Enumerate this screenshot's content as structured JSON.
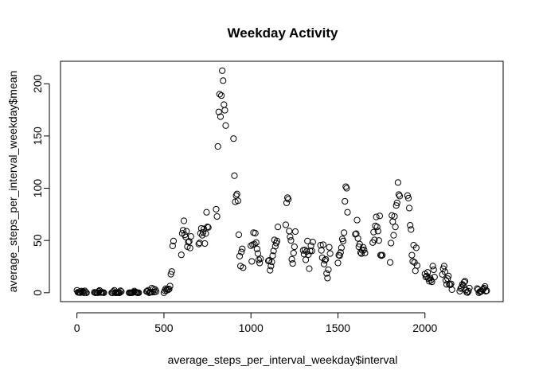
{
  "chart_data": {
    "type": "scatter",
    "title": "Weekday Activity",
    "xlabel": "average_steps_per_interval_weekday$interval",
    "ylabel": "average_steps_per_interval_weekday$mean",
    "xlim": [
      -94.4,
      2449.4
    ],
    "ylim": [
      -8.5,
      221.5
    ],
    "x_ticks": [
      0,
      500,
      1000,
      1500,
      2000
    ],
    "y_ticks": [
      0,
      50,
      100,
      150,
      200
    ],
    "grid": false,
    "legend": "none",
    "marker": "open-circle",
    "points": [
      [
        0,
        2.3
      ],
      [
        5,
        0.5
      ],
      [
        10,
        0.2
      ],
      [
        15,
        0.2
      ],
      [
        20,
        0.1
      ],
      [
        25,
        1.6
      ],
      [
        30,
        0.7
      ],
      [
        35,
        1.2
      ],
      [
        40,
        0
      ],
      [
        45,
        1.8
      ],
      [
        50,
        0.4
      ],
      [
        55,
        0
      ],
      [
        100,
        0.4
      ],
      [
        105,
        0
      ],
      [
        110,
        0.2
      ],
      [
        115,
        0.4
      ],
      [
        120,
        0
      ],
      [
        125,
        1.4
      ],
      [
        130,
        2.2
      ],
      [
        135,
        0.2
      ],
      [
        140,
        0.2
      ],
      [
        145,
        0.3
      ],
      [
        150,
        0.3
      ],
      [
        155,
        0
      ],
      [
        200,
        0
      ],
      [
        205,
        0
      ],
      [
        210,
        1.1
      ],
      [
        215,
        2.3
      ],
      [
        220,
        0
      ],
      [
        225,
        0.2
      ],
      [
        230,
        0
      ],
      [
        235,
        0.3
      ],
      [
        240,
        0
      ],
      [
        245,
        0
      ],
      [
        250,
        1.9
      ],
      [
        255,
        1.1
      ],
      [
        300,
        0
      ],
      [
        305,
        0
      ],
      [
        310,
        0
      ],
      [
        315,
        0
      ],
      [
        320,
        0.1
      ],
      [
        325,
        0.6
      ],
      [
        330,
        1.6
      ],
      [
        335,
        0.6
      ],
      [
        340,
        0.5
      ],
      [
        345,
        0.1
      ],
      [
        350,
        0
      ],
      [
        355,
        0
      ],
      [
        400,
        1.2
      ],
      [
        405,
        1.3
      ],
      [
        410,
        2.4
      ],
      [
        415,
        0
      ],
      [
        420,
        0.4
      ],
      [
        425,
        0.5
      ],
      [
        430,
        4.4
      ],
      [
        435,
        0.6
      ],
      [
        440,
        3.5
      ],
      [
        445,
        0.8
      ],
      [
        450,
        3.0
      ],
      [
        455,
        1.1
      ],
      [
        500,
        0
      ],
      [
        505,
        2.0
      ],
      [
        510,
        3.8
      ],
      [
        515,
        2.2
      ],
      [
        520,
        3.6
      ],
      [
        525,
        2.8
      ],
      [
        530,
        3.5
      ],
      [
        535,
        6.4
      ],
      [
        540,
        17.7
      ],
      [
        545,
        20.3
      ],
      [
        550,
        44.8
      ],
      [
        555,
        49.5
      ],
      [
        600,
        36.3
      ],
      [
        605,
        56.8
      ],
      [
        610,
        59.8
      ],
      [
        615,
        68.8
      ],
      [
        620,
        55.4
      ],
      [
        625,
        53.4
      ],
      [
        630,
        58.8
      ],
      [
        635,
        44.1
      ],
      [
        640,
        48.4
      ],
      [
        645,
        49.1
      ],
      [
        650,
        42.8
      ],
      [
        655,
        53.9
      ],
      [
        700,
        46.6
      ],
      [
        705,
        47.7
      ],
      [
        710,
        56.9
      ],
      [
        715,
        61.6
      ],
      [
        720,
        55.0
      ],
      [
        725,
        57.9
      ],
      [
        730,
        61.1
      ],
      [
        735,
        47.1
      ],
      [
        740,
        56.6
      ],
      [
        745,
        77.0
      ],
      [
        750,
        63.0
      ],
      [
        755,
        62.5
      ],
      [
        800,
        79.9
      ],
      [
        805,
        73.0
      ],
      [
        810,
        140.0
      ],
      [
        815,
        173.0
      ],
      [
        820,
        190.0
      ],
      [
        825,
        168.5
      ],
      [
        830,
        188.7
      ],
      [
        835,
        212.5
      ],
      [
        840,
        203.0
      ],
      [
        845,
        180.0
      ],
      [
        850,
        174.6
      ],
      [
        855,
        160.0
      ],
      [
        900,
        147.5
      ],
      [
        905,
        112.0
      ],
      [
        910,
        87.0
      ],
      [
        915,
        93.0
      ],
      [
        920,
        94.5
      ],
      [
        925,
        88.0
      ],
      [
        930,
        55.5
      ],
      [
        935,
        35.0
      ],
      [
        940,
        25.5
      ],
      [
        945,
        39.0
      ],
      [
        950,
        42.0
      ],
      [
        955,
        24.0
      ],
      [
        1000,
        45.0
      ],
      [
        1005,
        30.0
      ],
      [
        1010,
        46.0
      ],
      [
        1015,
        57.5
      ],
      [
        1020,
        46.5
      ],
      [
        1025,
        57.0
      ],
      [
        1030,
        48.0
      ],
      [
        1035,
        42.0
      ],
      [
        1040,
        37.5
      ],
      [
        1045,
        31.5
      ],
      [
        1050,
        28.5
      ],
      [
        1055,
        32.5
      ],
      [
        1100,
        30.5
      ],
      [
        1105,
        31.0
      ],
      [
        1110,
        21.5
      ],
      [
        1115,
        25.5
      ],
      [
        1120,
        29.5
      ],
      [
        1125,
        35.5
      ],
      [
        1130,
        40.0
      ],
      [
        1135,
        50.5
      ],
      [
        1140,
        44.5
      ],
      [
        1145,
        47.5
      ],
      [
        1150,
        49.5
      ],
      [
        1155,
        63.0
      ],
      [
        1200,
        65.0
      ],
      [
        1205,
        86.0
      ],
      [
        1210,
        91.0
      ],
      [
        1215,
        89.5
      ],
      [
        1220,
        59.0
      ],
      [
        1225,
        53.5
      ],
      [
        1230,
        50.0
      ],
      [
        1235,
        32.0
      ],
      [
        1240,
        28.0
      ],
      [
        1245,
        38.0
      ],
      [
        1250,
        44.0
      ],
      [
        1255,
        58.5
      ],
      [
        1300,
        40.5
      ],
      [
        1305,
        37.0
      ],
      [
        1310,
        41.0
      ],
      [
        1315,
        31.5
      ],
      [
        1320,
        39.5
      ],
      [
        1325,
        49.5
      ],
      [
        1330,
        36.5
      ],
      [
        1335,
        23.0
      ],
      [
        1340,
        40.0
      ],
      [
        1345,
        45.0
      ],
      [
        1350,
        40.0
      ],
      [
        1355,
        48.5
      ],
      [
        1400,
        45.5
      ],
      [
        1405,
        40.5
      ],
      [
        1410,
        33.5
      ],
      [
        1415,
        46.0
      ],
      [
        1420,
        27.5
      ],
      [
        1425,
        31.0
      ],
      [
        1430,
        32.0
      ],
      [
        1435,
        18.5
      ],
      [
        1440,
        14.0
      ],
      [
        1445,
        22.0
      ],
      [
        1450,
        43.5
      ],
      [
        1455,
        37.5
      ],
      [
        1500,
        28.5
      ],
      [
        1505,
        36.0
      ],
      [
        1510,
        35.5
      ],
      [
        1515,
        38.5
      ],
      [
        1520,
        43.0
      ],
      [
        1525,
        51.5
      ],
      [
        1530,
        49.5
      ],
      [
        1535,
        57.5
      ],
      [
        1540,
        87.5
      ],
      [
        1545,
        101.5
      ],
      [
        1550,
        100.0
      ],
      [
        1555,
        77.0
      ],
      [
        1600,
        56.0
      ],
      [
        1605,
        56.5
      ],
      [
        1610,
        69.5
      ],
      [
        1615,
        52.0
      ],
      [
        1620,
        44.0
      ],
      [
        1625,
        46.5
      ],
      [
        1630,
        38.5
      ],
      [
        1635,
        37.5
      ],
      [
        1640,
        40.5
      ],
      [
        1645,
        43.5
      ],
      [
        1650,
        41.0
      ],
      [
        1655,
        38.0
      ],
      [
        1700,
        48.0
      ],
      [
        1705,
        58.0
      ],
      [
        1710,
        50.5
      ],
      [
        1715,
        64.0
      ],
      [
        1720,
        72.5
      ],
      [
        1725,
        63.0
      ],
      [
        1730,
        59.0
      ],
      [
        1735,
        50.0
      ],
      [
        1740,
        73.5
      ],
      [
        1745,
        36.0
      ],
      [
        1750,
        35.5
      ],
      [
        1755,
        36.0
      ],
      [
        1800,
        29.0
      ],
      [
        1805,
        47.5
      ],
      [
        1810,
        74.0
      ],
      [
        1815,
        68.0
      ],
      [
        1820,
        55.0
      ],
      [
        1825,
        73.0
      ],
      [
        1830,
        63.0
      ],
      [
        1835,
        83.5
      ],
      [
        1840,
        86.0
      ],
      [
        1845,
        105.5
      ],
      [
        1850,
        94.0
      ],
      [
        1855,
        92.5
      ],
      [
        1900,
        93.0
      ],
      [
        1905,
        90.5
      ],
      [
        1910,
        81.0
      ],
      [
        1915,
        64.5
      ],
      [
        1920,
        60.5
      ],
      [
        1925,
        36.0
      ],
      [
        1930,
        30.0
      ],
      [
        1935,
        45.5
      ],
      [
        1940,
        29.0
      ],
      [
        1945,
        21.0
      ],
      [
        1950,
        43.0
      ],
      [
        1955,
        26.0
      ],
      [
        2000,
        18.0
      ],
      [
        2005,
        15.0
      ],
      [
        2010,
        16.0
      ],
      [
        2015,
        19.5
      ],
      [
        2020,
        13.5
      ],
      [
        2025,
        11.0
      ],
      [
        2030,
        14.0
      ],
      [
        2035,
        12.0
      ],
      [
        2040,
        10.5
      ],
      [
        2045,
        25.5
      ],
      [
        2050,
        22.0
      ],
      [
        2055,
        15.0
      ],
      [
        2100,
        17.5
      ],
      [
        2105,
        23.0
      ],
      [
        2110,
        25.5
      ],
      [
        2115,
        20.0
      ],
      [
        2120,
        12.0
      ],
      [
        2125,
        8.0
      ],
      [
        2130,
        13.5
      ],
      [
        2135,
        16.0
      ],
      [
        2140,
        8.0
      ],
      [
        2145,
        7.5
      ],
      [
        2150,
        8.5
      ],
      [
        2155,
        3.0
      ],
      [
        2200,
        1.5
      ],
      [
        2205,
        4.0
      ],
      [
        2210,
        5.0
      ],
      [
        2215,
        8.0
      ],
      [
        2220,
        7.0
      ],
      [
        2225,
        10.0
      ],
      [
        2230,
        11.0
      ],
      [
        2235,
        2.5
      ],
      [
        2240,
        0.5
      ],
      [
        2245,
        0.2
      ],
      [
        2250,
        1.5
      ],
      [
        2255,
        4.5
      ],
      [
        2300,
        4.0
      ],
      [
        2305,
        3.0
      ],
      [
        2310,
        0
      ],
      [
        2315,
        1.0
      ],
      [
        2320,
        1.0
      ],
      [
        2325,
        1.5
      ],
      [
        2330,
        3.0
      ],
      [
        2335,
        3.5
      ],
      [
        2340,
        4.5
      ],
      [
        2345,
        6.0
      ],
      [
        2350,
        1.5
      ],
      [
        2355,
        2.0
      ]
    ]
  }
}
